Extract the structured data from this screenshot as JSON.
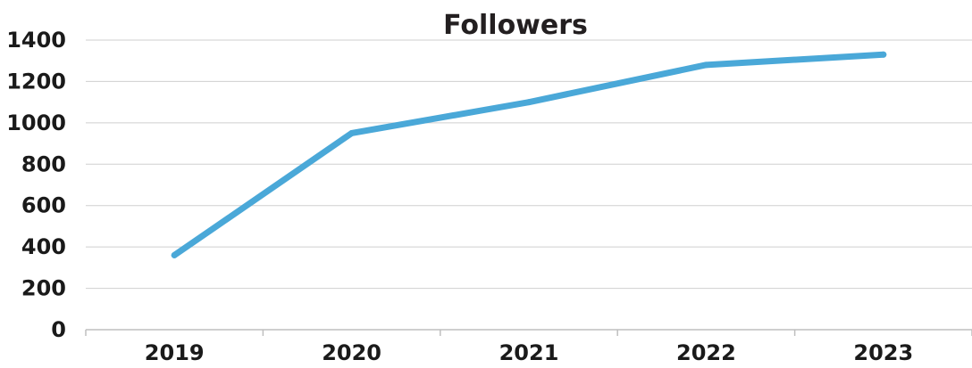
{
  "chart_data": {
    "type": "line",
    "title": "Followers",
    "xlabel": "",
    "ylabel": "",
    "categories": [
      "2019",
      "2020",
      "2021",
      "2022",
      "2023"
    ],
    "series": [
      {
        "values": [
          360,
          950,
          1100,
          1280,
          1330
        ],
        "color": "#4aa8d8"
      }
    ],
    "ylim": [
      0,
      1400
    ],
    "yticks": [
      0,
      200,
      400,
      600,
      800,
      1000,
      1200,
      1400
    ],
    "grid": true,
    "legend": "none",
    "gridColor": "#cfcfcf",
    "axisColor": "#bfbfbf"
  }
}
